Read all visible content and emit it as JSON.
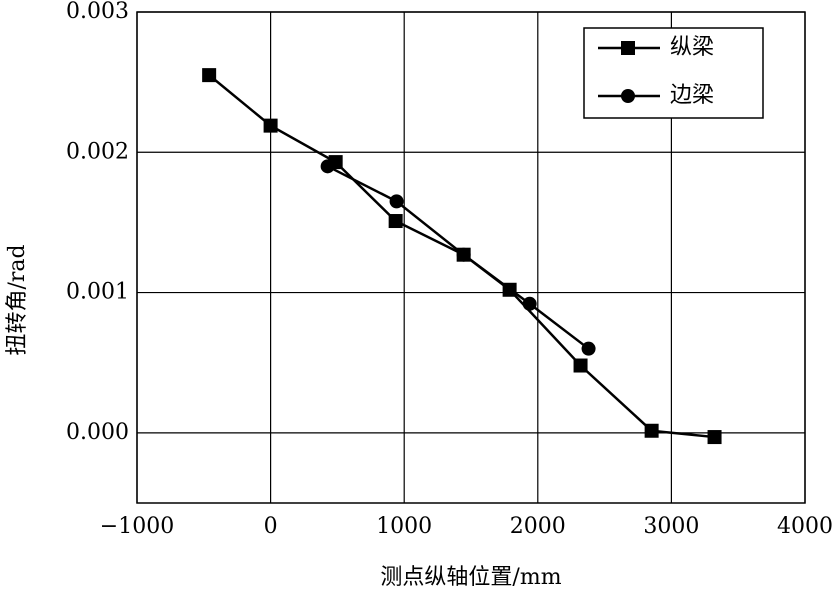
{
  "chart_data": {
    "type": "line",
    "xlabel": "测点纵轴位置/mm",
    "ylabel": "扭转角/rad",
    "xlim": [
      -1000,
      4000
    ],
    "xticks": [
      {
        "value": -1000,
        "label": "−1000"
      },
      0,
      1000,
      2000,
      3000,
      4000
    ],
    "ylim": [
      -0.0005,
      0.003
    ],
    "yticks": [
      {
        "value": 0,
        "label": "0.000"
      },
      0.001,
      0.002,
      0.003
    ],
    "grid": true,
    "legend": "upper right",
    "series": [
      {
        "name": "纵梁",
        "color": "#000000",
        "marker": "square",
        "x": [
          -460,
          0,
          487,
          936,
          1445,
          1789,
          2320,
          2852,
          3323
        ],
        "values": [
          0.00255,
          0.00219,
          0.00193,
          0.00151,
          0.00127,
          0.00102,
          0.00048,
          1.5e-05,
          -3e-05
        ]
      },
      {
        "name": "边梁",
        "color": "#000000",
        "marker": "circle",
        "x": [
          427,
          943,
          1445,
          1939,
          2380
        ],
        "values": [
          0.0019,
          0.00165,
          0.00127,
          0.00092,
          0.0006
        ]
      }
    ]
  }
}
